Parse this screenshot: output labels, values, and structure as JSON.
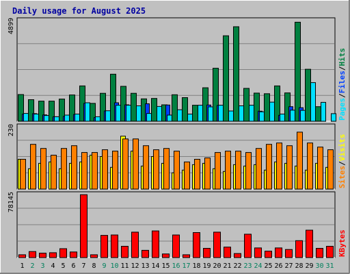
{
  "title": "Daily usage for August 2025",
  "chart_data": [
    {
      "type": "bar",
      "name": "hits-files-pages",
      "categories": [
        "1",
        "2",
        "3",
        "4",
        "5",
        "6",
        "7",
        "8",
        "9",
        "10",
        "11",
        "12",
        "13",
        "14",
        "15",
        "16",
        "17",
        "18",
        "19",
        "20",
        "21",
        "22",
        "23",
        "24",
        "25",
        "26",
        "27",
        "28",
        "29",
        "30",
        "31"
      ],
      "max_label": "4899",
      "ylim": [
        0,
        4899
      ],
      "series": [
        {
          "name": "Hits",
          "color": "#008040",
          "values": [
            1300,
            1050,
            980,
            980,
            1080,
            1280,
            1720,
            870,
            1360,
            2290,
            1700,
            1360,
            1090,
            1110,
            800,
            1290,
            1150,
            780,
            1630,
            2580,
            4160,
            4600,
            1600,
            1370,
            1340,
            1720,
            1380,
            4820,
            2530,
            710,
            0
          ]
        },
        {
          "name": "Files",
          "color": "#0040ff",
          "values": [
            350,
            370,
            310,
            220,
            240,
            330,
            870,
            180,
            500,
            900,
            800,
            0,
            850,
            0,
            790,
            0,
            0,
            0,
            790,
            770,
            0,
            0,
            0,
            490,
            0,
            290,
            710,
            660,
            0,
            0,
            0
          ]
        },
        {
          "name": "Pages",
          "color": "#00e0ff",
          "values": [
            380,
            350,
            280,
            220,
            300,
            350,
            900,
            220,
            510,
            780,
            780,
            750,
            380,
            720,
            300,
            560,
            350,
            780,
            700,
            780,
            500,
            750,
            780,
            460,
            930,
            350,
            540,
            530,
            1880,
            920,
            370
          ]
        }
      ]
    },
    {
      "type": "bar",
      "name": "visits-sites",
      "categories": [
        "1",
        "2",
        "3",
        "4",
        "5",
        "6",
        "7",
        "8",
        "9",
        "10",
        "11",
        "12",
        "13",
        "14",
        "15",
        "16",
        "17",
        "18",
        "19",
        "20",
        "21",
        "22",
        "23",
        "24",
        "25",
        "26",
        "27",
        "28",
        "29",
        "30",
        "31"
      ],
      "max_label": "230",
      "ylim": [
        0,
        230
      ],
      "series": [
        {
          "name": "Visits",
          "color": "#ffff00",
          "values": [
            110,
            75,
            95,
            100,
            75,
            95,
            100,
            125,
            120,
            80,
            195,
            140,
            85,
            120,
            95,
            60,
            70,
            90,
            95,
            75,
            65,
            90,
            85,
            90,
            70,
            100,
            95,
            85,
            70,
            95,
            80
          ]
        },
        {
          "name": "Sites",
          "color": "#ff8000",
          "values": [
            110,
            165,
            150,
            125,
            150,
            160,
            135,
            135,
            145,
            140,
            185,
            185,
            160,
            145,
            150,
            140,
            100,
            110,
            115,
            135,
            140,
            140,
            135,
            150,
            165,
            170,
            160,
            210,
            170,
            155,
            145
          ]
        }
      ]
    },
    {
      "type": "bar",
      "name": "kbytes",
      "categories": [
        "1",
        "2",
        "3",
        "4",
        "5",
        "6",
        "7",
        "8",
        "9",
        "10",
        "11",
        "12",
        "13",
        "14",
        "15",
        "16",
        "17",
        "18",
        "19",
        "20",
        "21",
        "22",
        "23",
        "24",
        "25",
        "26",
        "27",
        "28",
        "29",
        "30",
        "31"
      ],
      "max_label": "78145",
      "ylim": [
        0,
        78145
      ],
      "series": [
        {
          "name": "KBytes",
          "color": "#ff0000",
          "values": [
            3500,
            7500,
            5500,
            6000,
            11000,
            7000,
            78000,
            3500,
            27500,
            28000,
            14000,
            31500,
            9000,
            33000,
            4500,
            28000,
            3500,
            31000,
            11500,
            31500,
            13000,
            5000,
            29000,
            12000,
            8000,
            12000,
            10000,
            21000,
            34000,
            11500,
            14000
          ]
        }
      ]
    }
  ],
  "axis": {
    "day_colors": {
      "weekday": "#000000",
      "weekend": "#00805c"
    },
    "weekend_days": [
      2,
      3,
      9,
      10,
      16,
      17,
      23,
      24,
      30,
      31
    ]
  },
  "legend": {
    "top": {
      "parts": [
        {
          "text": "Pages",
          "color": "#00e0ff"
        },
        {
          "text": "/",
          "color": "#000000"
        },
        {
          "text": "Files",
          "color": "#0040ff"
        },
        {
          "text": "/",
          "color": "#000000"
        },
        {
          "text": "Hits",
          "color": "#008040"
        }
      ]
    },
    "middle": {
      "parts": [
        {
          "text": "Sites",
          "color": "#ff8000"
        },
        {
          "text": "/",
          "color": "#000000"
        },
        {
          "text": "Visits",
          "color": "#ffff00"
        }
      ]
    },
    "bottom": {
      "parts": [
        {
          "text": "KBytes",
          "color": "#ff0000"
        }
      ]
    }
  },
  "colors": {
    "background": "#c0c0c0",
    "plot_bg": "#c0c0c0",
    "title": "#0000a0",
    "grid": "#808080"
  }
}
